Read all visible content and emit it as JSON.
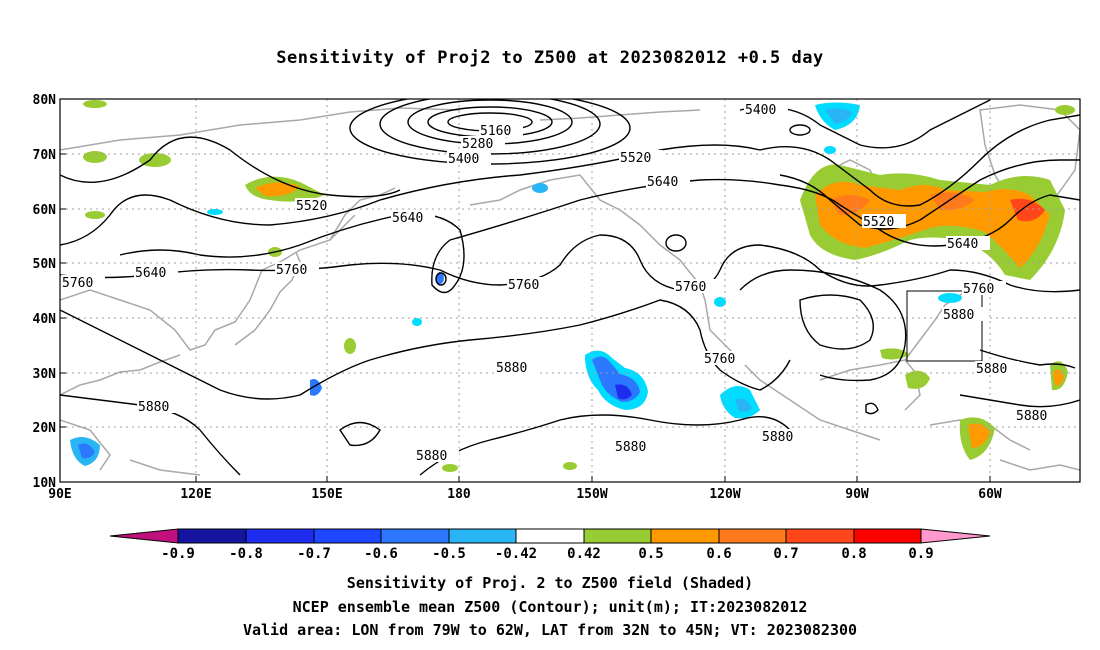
{
  "title": "Sensitivity of Proj2 to Z500 at 2023082012 +0.5 day",
  "map": {
    "lat_labels": [
      "80N",
      "70N",
      "60N",
      "50N",
      "40N",
      "30N",
      "20N",
      "10N"
    ],
    "lon_labels": [
      "90E",
      "120E",
      "150E",
      "180",
      "150W",
      "120W",
      "90W",
      "60W"
    ],
    "contour_labels": [
      "5160",
      "5280",
      "5400",
      "5400",
      "5520",
      "5520",
      "5520",
      "5640",
      "5640",
      "5640",
      "5640",
      "5760",
      "5760",
      "5760",
      "5760",
      "5760",
      "5760",
      "5880",
      "5880",
      "5880",
      "5880",
      "5880",
      "5880",
      "5880",
      "5880"
    ],
    "valid_area_box": {
      "lon": [
        "79W",
        "62W"
      ],
      "lat": [
        "32N",
        "45N"
      ]
    }
  },
  "colorbar": {
    "labels": [
      "-0.9",
      "-0.8",
      "-0.7",
      "-0.6",
      "-0.5",
      "-0.42",
      "0.42",
      "0.5",
      "0.6",
      "0.7",
      "0.8",
      "0.9"
    ],
    "colors": [
      "#c0107c",
      "#1414a0",
      "#1e2cf0",
      "#1e46ff",
      "#2c78ff",
      "#29b4f5",
      "#00dcff",
      "#ffffff",
      "#99cc33",
      "#ff9900",
      "#ff7a1a",
      "#ff4719",
      "#ff1a1a",
      "#ff0000",
      "#ff99cc"
    ]
  },
  "captions": {
    "line1": "Sensitivity of Proj. 2 to Z500 field (Shaded)",
    "line2": "NCEP ensemble mean Z500 (Contour); unit(m); IT:2023082012",
    "line3": "Valid area: LON from 79W to 62W, LAT from 32N to 45N; VT: 2023082300"
  }
}
